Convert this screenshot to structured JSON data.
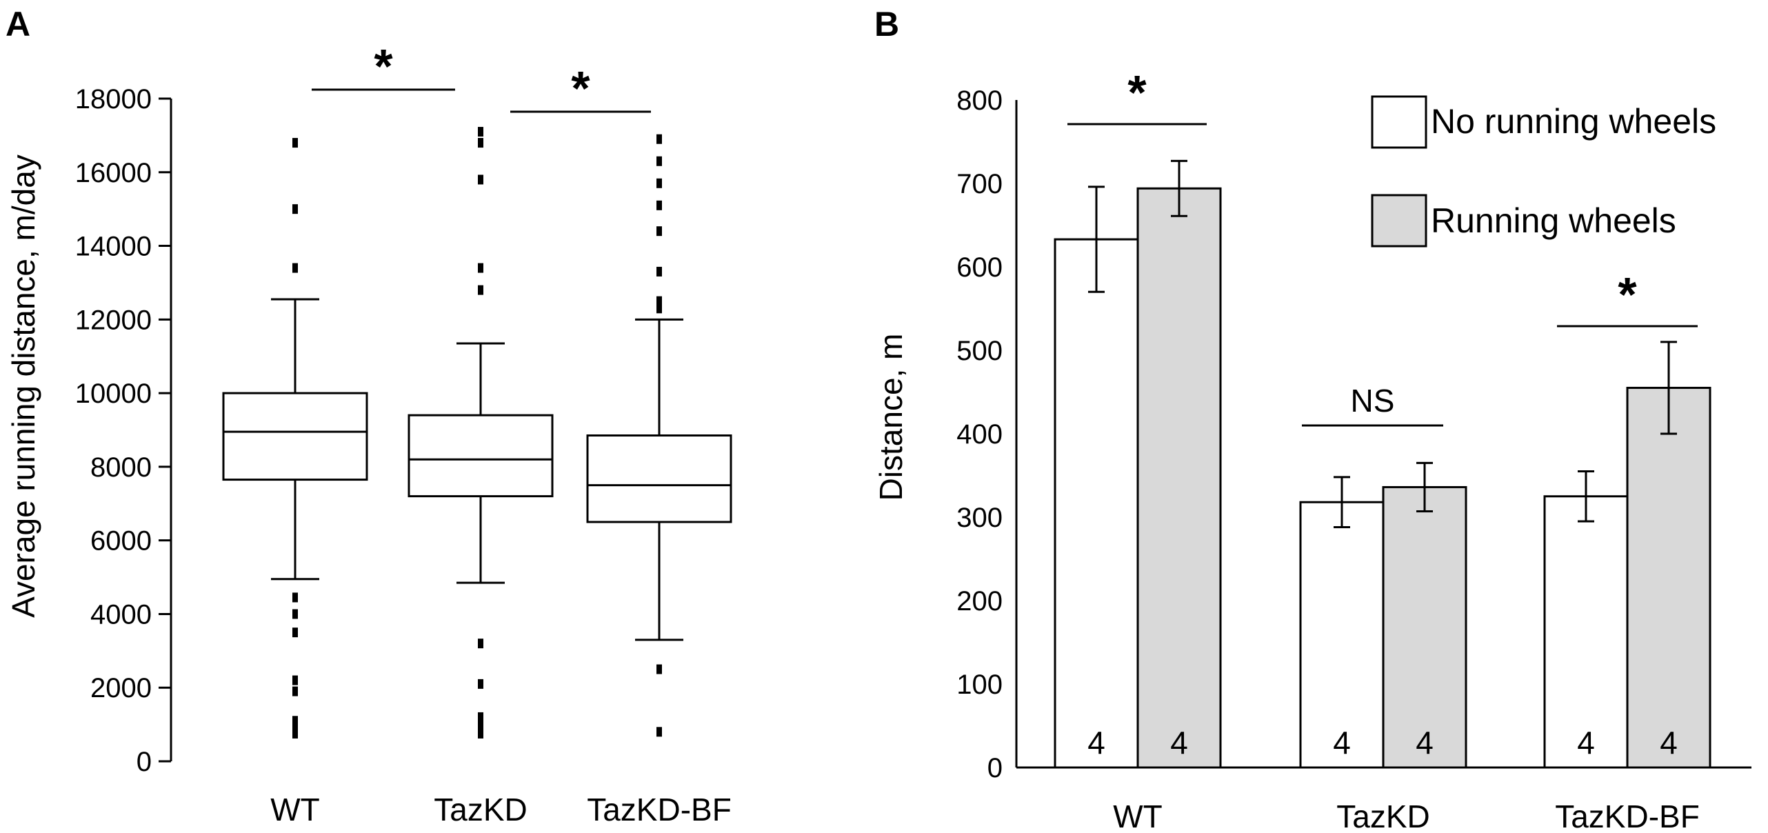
{
  "chart_data": [
    {
      "panel": "A",
      "type": "box",
      "ylabel": "Average running distance, m/day",
      "ylim": [
        0,
        18000
      ],
      "yticks": [
        0,
        2000,
        4000,
        6000,
        8000,
        10000,
        12000,
        14000,
        16000,
        18000
      ],
      "categories": [
        "WT",
        "TazKD",
        "TazKD-BF"
      ],
      "boxes": [
        {
          "name": "WT",
          "whisker_low": 4950,
          "q1": 7650,
          "median": 8950,
          "q3": 10000,
          "whisker_high": 12550,
          "outliers": [
            16800,
            15000,
            13400,
            4450,
            4000,
            3500,
            2200,
            1900,
            1100,
            900,
            750
          ]
        },
        {
          "name": "TazKD",
          "whisker_low": 4850,
          "q1": 7200,
          "median": 8200,
          "q3": 9400,
          "whisker_high": 11350,
          "outliers": [
            17100,
            16800,
            15800,
            13400,
            12800,
            3200,
            2100,
            1200,
            950,
            750
          ]
        },
        {
          "name": "TazKD-BF",
          "whisker_low": 3300,
          "q1": 6500,
          "median": 7500,
          "q3": 8850,
          "whisker_high": 12000,
          "outliers": [
            16900,
            16300,
            15700,
            15100,
            14400,
            13300,
            12500,
            12300,
            2500,
            800
          ]
        }
      ],
      "significance": [
        {
          "between": [
            "WT",
            "TazKD"
          ],
          "label": "*"
        },
        {
          "between": [
            "TazKD",
            "TazKD-BF"
          ],
          "label": "*"
        }
      ]
    },
    {
      "panel": "B",
      "type": "bar",
      "ylabel": "Distance, m",
      "ylim": [
        0,
        800
      ],
      "yticks": [
        0,
        100,
        200,
        300,
        400,
        500,
        600,
        700,
        800
      ],
      "categories": [
        "WT",
        "TazKD",
        "TazKD-BF"
      ],
      "series": [
        {
          "name": "No running wheels",
          "color": "#ffffff",
          "values": [
            633,
            318,
            325
          ],
          "errors": [
            63,
            30,
            30
          ],
          "n": [
            "4",
            "4",
            "4"
          ]
        },
        {
          "name": "Running wheels",
          "color": "#d9d9d9",
          "values": [
            694,
            336,
            455
          ],
          "errors": [
            33,
            29,
            55
          ],
          "n": [
            "4",
            "4",
            "4"
          ]
        }
      ],
      "legend": {
        "position": "top-right"
      },
      "significance": [
        {
          "group": "WT",
          "label": "*"
        },
        {
          "group": "TazKD",
          "label": "NS"
        },
        {
          "group": "TazKD-BF",
          "label": "*"
        }
      ]
    }
  ]
}
